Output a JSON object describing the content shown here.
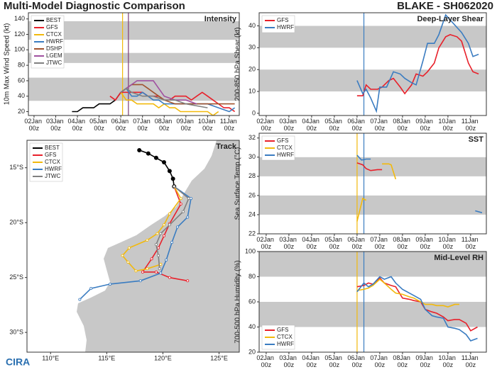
{
  "title": "Multi-Model Diagnostic Comparison",
  "storm": "BLAKE - SH062020",
  "logo": "CIRA",
  "chart_data": [
    {
      "type": "line",
      "title": "Intensity",
      "ylabel": "10m Max Wind Speed (kt)",
      "legend": "upper left",
      "xlim": [
        1.74,
        11.46
      ],
      "ylim": [
        15,
        148
      ],
      "xticks": [
        {
          "value": 2,
          "label": "02Jan 00z"
        },
        {
          "value": 3,
          "label": "03Jan 00z"
        },
        {
          "value": 4,
          "label": "04Jan 00z"
        },
        {
          "value": 5,
          "label": "05Jan 00z"
        },
        {
          "value": 6,
          "label": "06Jan 00z"
        },
        {
          "value": 7,
          "label": "07Jan 00z"
        },
        {
          "value": 8,
          "label": "08Jan 00z"
        },
        {
          "value": 9,
          "label": "09Jan 00z"
        },
        {
          "value": 10,
          "label": "10Jan 00z"
        },
        {
          "value": 11,
          "label": "11Jan 00z"
        }
      ],
      "yticks": [
        20,
        40,
        60,
        80,
        100,
        120,
        140
      ],
      "bands": [
        [
          34,
          64
        ],
        [
          83,
          96
        ],
        [
          113,
          137
        ]
      ],
      "vlines": [
        {
          "x": 6.08,
          "color": "#f2b90c"
        },
        {
          "x": 6.35,
          "color": "#7d3c78"
        }
      ],
      "series": [
        {
          "name": "BEST",
          "color": "#000000",
          "x": [
            3.75,
            4,
            4.25,
            4.5,
            4.75,
            5,
            5.25,
            5.5,
            5.75,
            6,
            6.25
          ],
          "values": [
            20,
            20,
            25,
            25,
            25,
            30,
            30,
            30,
            35,
            45,
            50
          ]
        },
        {
          "name": "GFS",
          "color": "#e8202a",
          "x": [
            5.5,
            5.75,
            6,
            6.25,
            6.5,
            6.75,
            7,
            7.25,
            7.5,
            7.75,
            8,
            8.25,
            8.5,
            8.75,
            9,
            9.25,
            9.5,
            9.75,
            10,
            10.25,
            10.5,
            10.75,
            11,
            11.25
          ],
          "values": [
            40,
            35,
            45,
            45,
            45,
            45,
            45,
            40,
            40,
            40,
            35,
            35,
            40,
            40,
            40,
            35,
            40,
            45,
            40,
            35,
            30,
            25,
            25,
            20
          ]
        },
        {
          "name": "CTCX",
          "color": "#f2b90c",
          "x": [
            6,
            6.25,
            6.5,
            6.75,
            7,
            7.25,
            7.5,
            7.75,
            8,
            8.25,
            8.5,
            8.75,
            9,
            9.25,
            9.5,
            9.75,
            10,
            10.25,
            10.5
          ],
          "values": [
            45,
            35,
            35,
            30,
            30,
            30,
            30,
            25,
            30,
            25,
            25,
            20,
            20,
            20,
            20,
            20,
            20,
            15,
            20
          ]
        },
        {
          "name": "HWRF",
          "color": "#3a7cc1",
          "x": [
            6,
            6.25,
            6.5,
            6.75,
            7,
            7.25,
            7.5,
            7.75,
            8,
            8.5,
            9,
            9.5,
            10,
            10.5,
            11,
            11.25
          ],
          "values": [
            45,
            50,
            40,
            40,
            45,
            40,
            35,
            35,
            30,
            30,
            30,
            30,
            30,
            25,
            20,
            25
          ]
        },
        {
          "name": "DSHP",
          "color": "#a0522d",
          "x": [
            6,
            6.25,
            6.5,
            6.75,
            7,
            7.25,
            7.5,
            7.75,
            8,
            8.5,
            9,
            9.5,
            10,
            10.5,
            11,
            11.25
          ],
          "values": [
            45,
            50,
            55,
            55,
            55,
            50,
            45,
            40,
            35,
            30,
            30,
            30,
            30,
            30,
            30,
            30
          ]
        },
        {
          "name": "LGEM",
          "color": "#a050a0",
          "x": [
            6,
            6.25,
            6.5,
            6.75,
            7,
            7.25,
            7.5,
            7.75,
            8,
            8.5,
            9,
            9.5
          ],
          "values": [
            45,
            50,
            55,
            60,
            60,
            60,
            60,
            50,
            40,
            35,
            35,
            30
          ]
        },
        {
          "name": "JTWC",
          "color": "#808080",
          "x": [
            6,
            6.25,
            6.5,
            7,
            7.5,
            8,
            8.5,
            9,
            10
          ],
          "values": [
            45,
            50,
            45,
            40,
            40,
            35,
            35,
            30,
            25
          ]
        }
      ]
    },
    {
      "type": "track",
      "title": "Track",
      "legend": "upper left",
      "xlim": [
        107.9,
        126.8
      ],
      "ylim": [
        -31.8,
        -12.5
      ],
      "xticks": [
        {
          "value": 110,
          "label": "110°E"
        },
        {
          "value": 115,
          "label": "115°E"
        },
        {
          "value": 120,
          "label": "120°E"
        },
        {
          "value": 125,
          "label": "125°E"
        }
      ],
      "yticks": [
        {
          "value": -15,
          "label": "15°S"
        },
        {
          "value": -20,
          "label": "20°S"
        },
        {
          "value": -25,
          "label": "25°S"
        },
        {
          "value": -30,
          "label": "30°S"
        }
      ],
      "series": [
        {
          "name": "BEST",
          "color": "#000000",
          "x": [
            117.9,
            118.7,
            119.4,
            120.1,
            120.6,
            120.9,
            121.0
          ],
          "values": [
            -13.4,
            -13.7,
            -14.1,
            -14.5,
            -15.3,
            -16.0,
            -16.7
          ]
        },
        {
          "name": "GFS",
          "color": "#e8202a",
          "x": [
            121.0,
            121.6,
            120.6,
            120.1,
            119.6,
            119.0,
            118.2,
            119.4,
            120.6,
            122.2
          ],
          "values": [
            -16.7,
            -18.3,
            -20.1,
            -21.2,
            -22.3,
            -23.3,
            -24.5,
            -24.5,
            -25.0,
            -25.3
          ]
        },
        {
          "name": "CTCX",
          "color": "#f2b90c",
          "x": [
            121.0,
            121.6,
            120.6,
            120.1,
            119.5,
            118.6,
            117.0,
            116.4,
            116.9,
            117.6,
            118.6,
            119.8
          ],
          "values": [
            -16.7,
            -17.8,
            -19.2,
            -20.2,
            -21.0,
            -21.6,
            -22.3,
            -23.0,
            -23.6,
            -24.4,
            -24.2,
            -23.8
          ]
        },
        {
          "name": "HWRF",
          "color": "#3a7cc1",
          "x": [
            121.0,
            122.5,
            122.2,
            121.3,
            120.8,
            120.3,
            119.8,
            118.0,
            115.3,
            113.6,
            112.6
          ],
          "values": [
            -16.7,
            -17.8,
            -19.5,
            -20.4,
            -21.8,
            -23.4,
            -24.6,
            -25.3,
            -25.6,
            -26.0,
            -27.0
          ]
        },
        {
          "name": "JTWC",
          "color": "#808080",
          "x": [
            121.0,
            122.3,
            121.8,
            120.6,
            119.8,
            119.4,
            119.6,
            119.7
          ],
          "values": [
            -16.7,
            -17.8,
            -19.0,
            -20.2,
            -21.0,
            -22.0,
            -23.0,
            -24.2
          ]
        }
      ]
    },
    {
      "type": "line",
      "title": "Deep-Layer Shear",
      "ylabel": "200-850 hPa Shear (kt)",
      "legend": "upper left",
      "xlim": [
        1.69,
        11.69
      ],
      "ylim": [
        -1,
        46
      ],
      "xticks": [
        {
          "value": 2,
          "label": "02Jan 00z"
        },
        {
          "value": 3,
          "label": "03Jan 00z"
        },
        {
          "value": 4,
          "label": "04Jan 00z"
        },
        {
          "value": 5,
          "label": "05Jan 00z"
        },
        {
          "value": 6,
          "label": "06Jan 00z"
        },
        {
          "value": 7,
          "label": "07Jan 00z"
        },
        {
          "value": 8,
          "label": "08Jan 00z"
        },
        {
          "value": 9,
          "label": "09Jan 00z"
        },
        {
          "value": 10,
          "label": "10Jan 00z"
        },
        {
          "value": 11,
          "label": "11Jan 00z"
        }
      ],
      "yticks": [
        0,
        10,
        20,
        30,
        40
      ],
      "bands": [
        [
          10,
          20
        ],
        [
          30,
          40
        ]
      ],
      "vlines": [
        {
          "x": 6.3,
          "color": "#3a7cc1"
        }
      ],
      "series": [
        {
          "name": "GFS",
          "color": "#e8202a",
          "x": [
            6,
            6.25,
            6.4,
            6.6,
            6.9,
            7.1,
            7.4,
            7.6,
            7.9,
            8.1,
            8.4,
            8.6,
            8.9,
            9.1,
            9.4,
            9.6,
            9.9,
            10.1,
            10.4,
            10.6,
            10.9,
            11.1,
            11.35
          ],
          "values": [
            8,
            8,
            13,
            11,
            11,
            12,
            15,
            16,
            12,
            9,
            13,
            18,
            17,
            19,
            23,
            30,
            35,
            36,
            35,
            33,
            23,
            19,
            18
          ]
        },
        {
          "name": "HWRF",
          "color": "#3a7cc1",
          "x": [
            6,
            6.25,
            6.4,
            6.6,
            6.85,
            7,
            7.3,
            7.6,
            7.9,
            8.1,
            8.4,
            8.6,
            8.9,
            9.1,
            9.4,
            9.6,
            9.9,
            10.6,
            10.9,
            11.1,
            11.35
          ],
          "values": [
            15,
            9,
            11,
            7,
            1,
            12,
            12,
            19,
            18,
            16,
            14,
            13,
            24,
            32,
            32,
            36,
            45,
            37,
            32,
            26,
            27
          ]
        }
      ]
    },
    {
      "type": "line",
      "title": "SST",
      "ylabel": "Sea Surface Temp (°C)",
      "legend": "upper left",
      "xlim": [
        1.69,
        11.69
      ],
      "ylim": [
        22,
        32.5
      ],
      "xticks": [
        {
          "value": 2,
          "label": "02Jan 00z"
        },
        {
          "value": 3,
          "label": "03Jan 00z"
        },
        {
          "value": 4,
          "label": "04Jan 00z"
        },
        {
          "value": 5,
          "label": "05Jan 00z"
        },
        {
          "value": 6,
          "label": "06Jan 00z"
        },
        {
          "value": 7,
          "label": "07Jan 00z"
        },
        {
          "value": 8,
          "label": "08Jan 00z"
        },
        {
          "value": 9,
          "label": "09Jan 00z"
        },
        {
          "value": 10,
          "label": "10Jan 00z"
        },
        {
          "value": 11,
          "label": "11Jan 00z"
        }
      ],
      "yticks": [
        22,
        24,
        26,
        28,
        30,
        32
      ],
      "bands": [
        [
          24,
          26
        ],
        [
          28,
          30
        ]
      ],
      "vlines": [
        {
          "x": 6.0,
          "color": "#f2b90c"
        },
        {
          "x": 6.3,
          "color": "#3a7cc1"
        }
      ],
      "series": [
        {
          "name": "GFS",
          "color": "#e8202a",
          "x": [
            6,
            6.25,
            6.4,
            6.6,
            6.9,
            7.1
          ],
          "values": [
            29.4,
            29.2,
            28.8,
            28.6,
            28.7,
            28.7
          ]
        },
        {
          "name": "CTCX",
          "color": "#f2b90c",
          "x": [
            6,
            6.25,
            6.4,
            null,
            7.1,
            7.4,
            7.5,
            7.7
          ],
          "values": [
            23.3,
            25.7,
            25.5,
            null,
            29.3,
            29.3,
            29.2,
            27.7
          ]
        },
        {
          "name": "HWRF",
          "color": "#3a7cc1",
          "x": [
            6,
            6.2,
            6.4,
            6.6,
            null,
            11.2,
            11.5
          ],
          "values": [
            30.2,
            29.7,
            29.8,
            29.8,
            null,
            24.4,
            24.2
          ]
        }
      ]
    },
    {
      "type": "line",
      "title": "Mid-Level RH",
      "ylabel": "700-500 hPa Humidity (%)",
      "legend": "lower left",
      "xlim": [
        1.69,
        11.69
      ],
      "ylim": [
        20,
        100
      ],
      "xticks": [
        {
          "value": 2,
          "label": "02Jan 00z"
        },
        {
          "value": 3,
          "label": "03Jan 00z"
        },
        {
          "value": 4,
          "label": "04Jan 00z"
        },
        {
          "value": 5,
          "label": "05Jan 00z"
        },
        {
          "value": 6,
          "label": "06Jan 00z"
        },
        {
          "value": 7,
          "label": "07Jan 00z"
        },
        {
          "value": 8,
          "label": "08Jan 00z"
        },
        {
          "value": 9,
          "label": "09Jan 00z"
        },
        {
          "value": 10,
          "label": "10Jan 00z"
        },
        {
          "value": 11,
          "label": "11Jan 00z"
        }
      ],
      "yticks": [
        20,
        40,
        60,
        80,
        100
      ],
      "bands": [
        [
          40,
          60
        ],
        [
          80,
          100
        ]
      ],
      "vlines": [
        {
          "x": 6.0,
          "color": "#f2b90c"
        },
        {
          "x": 6.3,
          "color": "#3a7cc1"
        }
      ],
      "series": [
        {
          "name": "GFS",
          "color": "#e8202a",
          "x": [
            6,
            6.3,
            6.5,
            6.7,
            7,
            7.2,
            7.5,
            7.7,
            8,
            8.3,
            8.5,
            8.8,
            9,
            9.3,
            9.5,
            9.8,
            10,
            10.3,
            10.5,
            10.8,
            11,
            11.3
          ],
          "values": [
            72,
            73,
            75,
            74,
            79,
            75,
            73,
            72,
            63,
            62,
            61,
            60,
            54,
            52,
            51,
            48,
            45,
            46,
            46,
            43,
            37,
            40
          ]
        },
        {
          "name": "CTCX",
          "color": "#f2b90c",
          "x": [
            6,
            6.3,
            6.5,
            6.7,
            7,
            7.2,
            7.5,
            7.7,
            8,
            8.3,
            8.5,
            8.8,
            9,
            9.3,
            9.5,
            9.8,
            10,
            10.3,
            10.5
          ],
          "values": [
            69,
            70,
            71,
            73,
            78,
            75,
            70,
            67,
            66,
            64,
            63,
            60,
            58,
            58,
            57,
            57,
            56,
            58,
            58
          ]
        },
        {
          "name": "HWRF",
          "color": "#3a7cc1",
          "x": [
            6,
            6.3,
            6.5,
            6.7,
            7,
            7.2,
            7.5,
            7.7,
            8,
            8.3,
            8.5,
            8.8,
            9,
            9.3,
            9.5,
            9.8,
            10,
            10.3,
            10.5,
            10.8,
            11,
            11.3
          ],
          "values": [
            68,
            75,
            72,
            74,
            80,
            78,
            80,
            75,
            70,
            67,
            65,
            62,
            54,
            49,
            48,
            47,
            40,
            39,
            38,
            34,
            29,
            31
          ]
        }
      ]
    }
  ]
}
